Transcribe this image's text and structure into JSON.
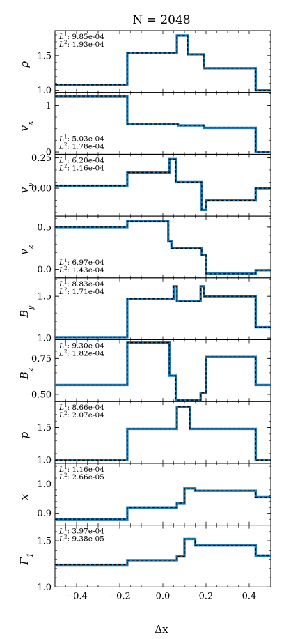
{
  "chart_data": {
    "type": "line",
    "title": "N = 2048",
    "xlabel": "Δx",
    "xlim": [
      -0.5,
      0.5
    ],
    "xticks": [
      -0.4,
      -0.2,
      0.0,
      0.2,
      0.4
    ],
    "xtick_labels": [
      "−0.4",
      "−0.2",
      "0.0",
      "0.2",
      "0.4"
    ],
    "line_colors": {
      "numerical": "#1f77b4",
      "reference": "#000000"
    },
    "panels": [
      {
        "name": "rho",
        "ylabel": "ρ",
        "ylim": [
          0.97,
          1.86
        ],
        "yticks": [
          1.0,
          1.5
        ],
        "ytick_labels": [
          "1.0",
          "1.5"
        ],
        "minor": 0.1,
        "errors": {
          "L1": "9.85e-04",
          "L2": "1.93e-04"
        },
        "err_pos": "top",
        "x": [
          -0.5,
          -0.165,
          -0.165,
          0.065,
          0.065,
          0.115,
          0.115,
          0.19,
          0.19,
          0.43,
          0.43,
          0.5
        ],
        "y": [
          1.08,
          1.08,
          1.54,
          1.54,
          1.79,
          1.79,
          1.52,
          1.52,
          1.32,
          1.32,
          1.0,
          1.0
        ]
      },
      {
        "name": "vx",
        "ylabel": "v_x",
        "ylim": [
          -0.05,
          1.28
        ],
        "yticks": [
          0,
          1
        ],
        "ytick_labels": [
          "0",
          "1"
        ],
        "minor": 0.25,
        "errors": {
          "L1": "5.03e-04",
          "L2": "1.78e-04"
        },
        "err_pos": "bottom",
        "x": [
          -0.5,
          -0.165,
          -0.165,
          0.07,
          0.07,
          0.19,
          0.19,
          0.43,
          0.43,
          0.5
        ],
        "y": [
          1.2,
          1.2,
          0.6,
          0.6,
          0.57,
          0.57,
          0.52,
          0.52,
          0.0,
          0.0
        ]
      },
      {
        "name": "vy",
        "ylabel": "v_y",
        "ylim": [
          -0.23,
          0.28
        ],
        "yticks": [
          0.0,
          0.25
        ],
        "ytick_labels": [
          "0.00",
          "0.25"
        ],
        "minor": 0.05,
        "errors": {
          "L1": "6.20e-04",
          "L2": "1.16e-04"
        },
        "err_pos": "top",
        "x": [
          -0.5,
          -0.165,
          -0.165,
          0.03,
          0.03,
          0.06,
          0.06,
          0.18,
          0.18,
          0.2,
          0.2,
          0.43,
          0.43,
          0.5
        ],
        "y": [
          0.02,
          0.02,
          0.13,
          0.13,
          0.24,
          0.24,
          0.05,
          0.05,
          -0.18,
          -0.18,
          -0.1,
          -0.1,
          0.0,
          0.0
        ]
      },
      {
        "name": "vz",
        "ylabel": "v_z",
        "ylim": [
          -0.1,
          0.63
        ],
        "yticks": [
          0.0,
          0.5
        ],
        "ytick_labels": [
          "0.0",
          "0.5"
        ],
        "minor": 0.1,
        "errors": {
          "L1": "6.97e-04",
          "L2": "1.43e-04"
        },
        "err_pos": "bottom",
        "x": [
          -0.5,
          -0.165,
          -0.165,
          0.025,
          0.025,
          0.04,
          0.04,
          0.18,
          0.18,
          0.2,
          0.2,
          0.43,
          0.43,
          0.5
        ],
        "y": [
          0.5,
          0.5,
          0.57,
          0.57,
          0.33,
          0.33,
          0.25,
          0.25,
          0.17,
          0.17,
          -0.05,
          -0.05,
          -0.01,
          -0.01
        ]
      },
      {
        "name": "By",
        "ylabel": "B_y",
        "ylim": [
          0.98,
          1.72
        ],
        "yticks": [
          1.0,
          1.5
        ],
        "ytick_labels": [
          "1.0",
          "1.5"
        ],
        "minor": 0.1,
        "errors": {
          "L1": "8.83e-04",
          "L2": "1.71e-04"
        },
        "err_pos": "top",
        "x": [
          -0.5,
          -0.165,
          -0.165,
          0.05,
          0.05,
          0.065,
          0.065,
          0.175,
          0.175,
          0.19,
          0.19,
          0.43,
          0.43,
          0.5
        ],
        "y": [
          1.01,
          1.01,
          1.47,
          1.47,
          1.62,
          1.62,
          1.44,
          1.44,
          1.62,
          1.62,
          1.5,
          1.5,
          1.13,
          1.13
        ]
      },
      {
        "name": "Bz",
        "ylabel": "B_z",
        "ylim": [
          0.45,
          0.88
        ],
        "yticks": [
          0.5,
          0.75
        ],
        "ytick_labels": [
          "0.50",
          "0.75"
        ],
        "minor": 0.05,
        "errors": {
          "L1": "9.30e-04",
          "L2": "1.82e-04"
        },
        "err_pos": "top",
        "x": [
          -0.5,
          -0.165,
          -0.165,
          0.03,
          0.03,
          0.06,
          0.06,
          0.175,
          0.175,
          0.2,
          0.2,
          0.43,
          0.43,
          0.5
        ],
        "y": [
          0.565,
          0.565,
          0.86,
          0.86,
          0.63,
          0.63,
          0.46,
          0.46,
          0.51,
          0.51,
          0.76,
          0.76,
          0.565,
          0.565
        ]
      },
      {
        "name": "p",
        "ylabel": "p",
        "ylim": [
          0.95,
          1.9
        ],
        "yticks": [
          1.0,
          1.5
        ],
        "ytick_labels": [
          "1.0",
          "1.5"
        ],
        "minor": 0.1,
        "errors": {
          "L1": "8.66e-04",
          "L2": "2.07e-04"
        },
        "err_pos": "top",
        "x": [
          -0.5,
          -0.165,
          -0.165,
          0.065,
          0.065,
          0.125,
          0.125,
          0.43,
          0.43,
          0.5
        ],
        "y": [
          1.0,
          1.0,
          1.48,
          1.48,
          1.82,
          1.82,
          1.48,
          1.48,
          1.0,
          1.0
        ]
      },
      {
        "name": "x",
        "ylabel": "x",
        "ylim": [
          0.86,
          1.07
        ],
        "yticks": [
          0.9,
          1.0
        ],
        "ytick_labels": [
          "0.9",
          "1.0"
        ],
        "minor": 0.02,
        "errors": {
          "L1": "1.16e-04",
          "L2": "2.66e-05"
        },
        "err_pos": "top",
        "x": [
          -0.5,
          -0.165,
          -0.165,
          0.065,
          0.065,
          0.1,
          0.1,
          0.15,
          0.15,
          0.43,
          0.43,
          0.5
        ],
        "y": [
          0.88,
          0.88,
          0.92,
          0.92,
          0.935,
          0.935,
          0.985,
          0.985,
          0.977,
          0.977,
          0.955,
          0.955
        ]
      },
      {
        "name": "Gamma1",
        "ylabel": "Γ_1",
        "ylim": [
          1.0,
          1.67
        ],
        "yticks": [
          1.0,
          1.5
        ],
        "ytick_labels": [
          "1.0",
          "1.5"
        ],
        "minor": 0.1,
        "errors": {
          "L1": "3.97e-04",
          "L2": "9.38e-05"
        },
        "err_pos": "top",
        "x": [
          -0.5,
          -0.165,
          -0.165,
          0.065,
          0.065,
          0.1,
          0.1,
          0.15,
          0.15,
          0.43,
          0.43,
          0.5
        ],
        "y": [
          1.24,
          1.24,
          1.29,
          1.29,
          1.33,
          1.33,
          1.52,
          1.52,
          1.45,
          1.45,
          1.34,
          1.34
        ]
      }
    ]
  }
}
